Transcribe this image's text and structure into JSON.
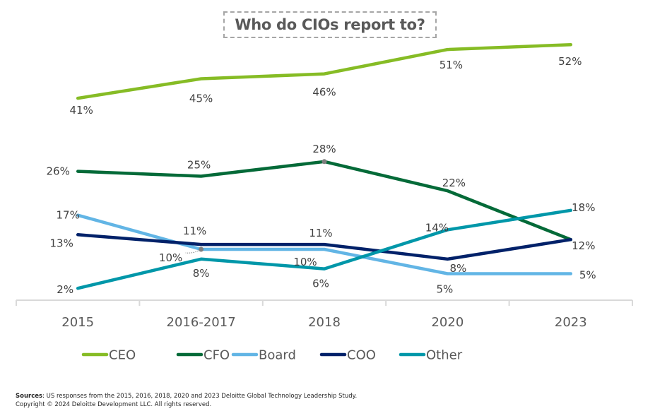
{
  "chart_data": {
    "type": "line",
    "title": "Who do CIOs report to?",
    "xlabel": "",
    "ylabel": "",
    "categories": [
      "2015",
      "2016-2017",
      "2018",
      "2020",
      "2023"
    ],
    "ylim": [
      0,
      55
    ],
    "grid": false,
    "legend_position": "bottom",
    "value_suffix": "%",
    "series": [
      {
        "name": "CEO",
        "color": "#86bc25",
        "values": [
          41,
          45,
          46,
          51,
          52
        ]
      },
      {
        "name": "CFO",
        "color": "#046a38",
        "values": [
          26,
          25,
          28,
          22,
          12
        ]
      },
      {
        "name": "Board",
        "color": "#62b5e5",
        "values": [
          17,
          10,
          10,
          5,
          5
        ]
      },
      {
        "name": "COO",
        "color": "#012169",
        "values": [
          13,
          11,
          11,
          8,
          12
        ]
      },
      {
        "name": "Other",
        "color": "#0097a9",
        "values": [
          2,
          8,
          6,
          14,
          18
        ]
      }
    ]
  },
  "footer": {
    "sources_label": "Sources",
    "sources_text": ": US responses from the 2015, 2016, 2018, 2020 and 2023 Deloitte Global Technology Leadership Study.",
    "copyright": "Copyright © 2024 Deloitte Development LLC. All rights reserved."
  }
}
